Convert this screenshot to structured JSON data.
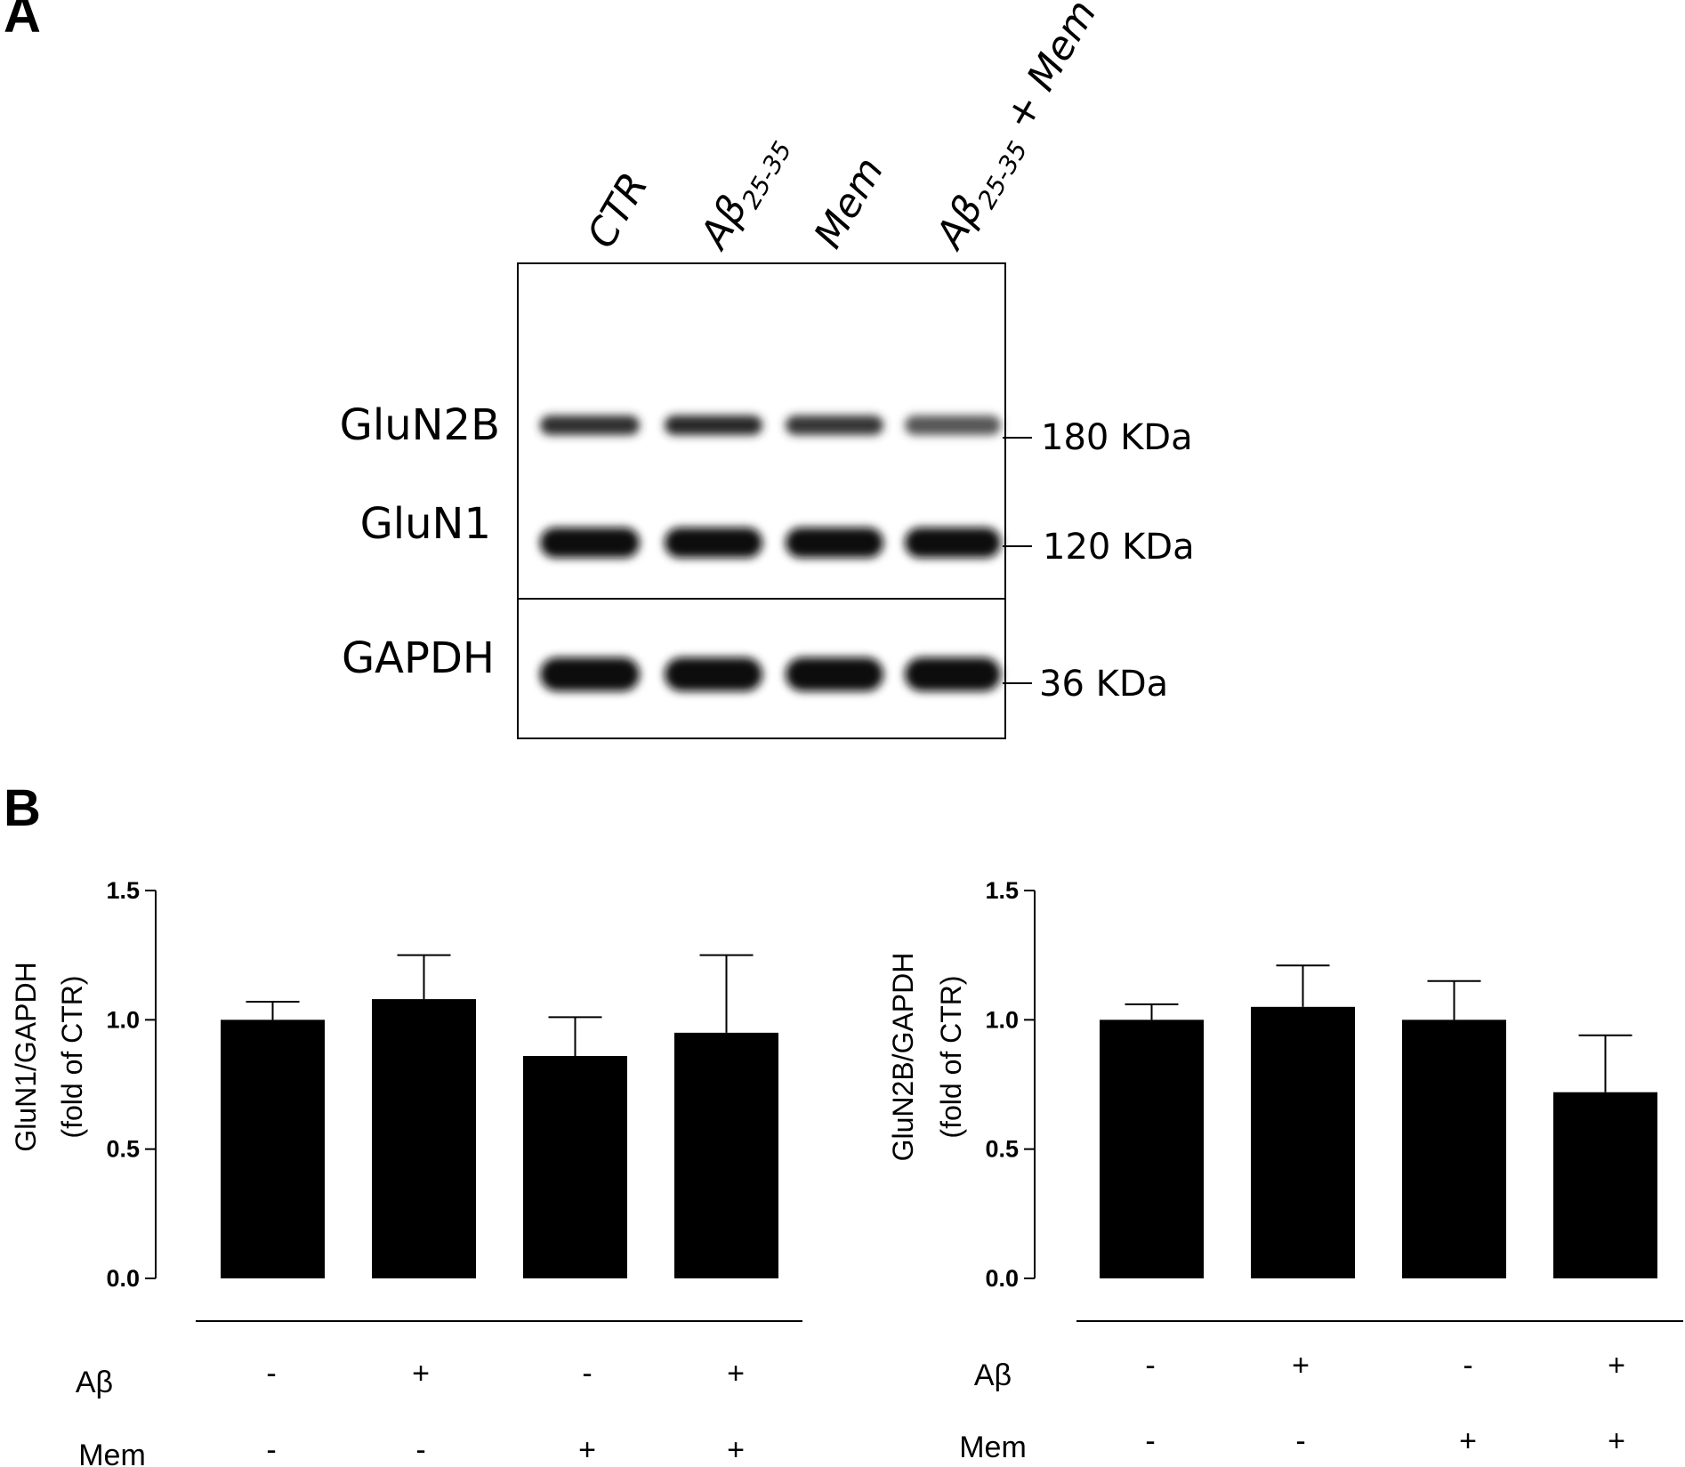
{
  "panel_a": {
    "letter": "A",
    "lanes": [
      {
        "main": "CTR",
        "sub": "",
        "tail": ""
      },
      {
        "main": "Aβ",
        "sub": "25-35",
        "tail": ""
      },
      {
        "main": "Mem",
        "sub": "",
        "tail": ""
      },
      {
        "main": "Aβ",
        "sub": "25-35",
        "tail": " + Mem"
      }
    ],
    "proteins": [
      {
        "name": "GluN2B",
        "mw": "180 KDa",
        "relative_intensity": [
          0.75,
          0.8,
          0.7,
          0.45
        ]
      },
      {
        "name": "GluN1",
        "mw": "120 KDa",
        "relative_intensity": [
          1.0,
          1.0,
          1.0,
          0.95
        ]
      },
      {
        "name": "GAPDH",
        "mw": "36 KDa",
        "relative_intensity": [
          1.0,
          1.0,
          1.0,
          1.0
        ]
      }
    ]
  },
  "panel_b": {
    "letter": "B",
    "condition_rows": [
      {
        "label": "Aβ",
        "signs": [
          "-",
          "+",
          "-",
          "+"
        ]
      },
      {
        "label": "Mem",
        "signs": [
          "-",
          "-",
          "+",
          "+"
        ]
      }
    ]
  },
  "chart_data": [
    {
      "type": "bar",
      "categories": [
        "CTR",
        "Aβ25-35",
        "Mem",
        "Aβ25-35 + Mem"
      ],
      "values": [
        1.0,
        1.08,
        0.86,
        0.95
      ],
      "errors": [
        0.07,
        0.17,
        0.15,
        0.3
      ],
      "ylabel_line1": "GluN1/GAPDH",
      "ylabel_line2": "(fold of CTR)",
      "ylim": [
        0,
        1.5
      ],
      "yticks": [
        "0.0",
        "0.5",
        "1.0",
        "1.5"
      ],
      "bar_color": "#000000"
    },
    {
      "type": "bar",
      "categories": [
        "CTR",
        "Aβ25-35",
        "Mem",
        "Aβ25-35 + Mem"
      ],
      "values": [
        1.0,
        1.05,
        1.0,
        0.72
      ],
      "errors": [
        0.06,
        0.16,
        0.15,
        0.22
      ],
      "ylabel_line1": "GluN2B/GAPDH",
      "ylabel_line2": "(fold of CTR)",
      "ylim": [
        0,
        1.5
      ],
      "yticks": [
        "0.0",
        "0.5",
        "1.0",
        "1.5"
      ],
      "bar_color": "#000000"
    }
  ]
}
